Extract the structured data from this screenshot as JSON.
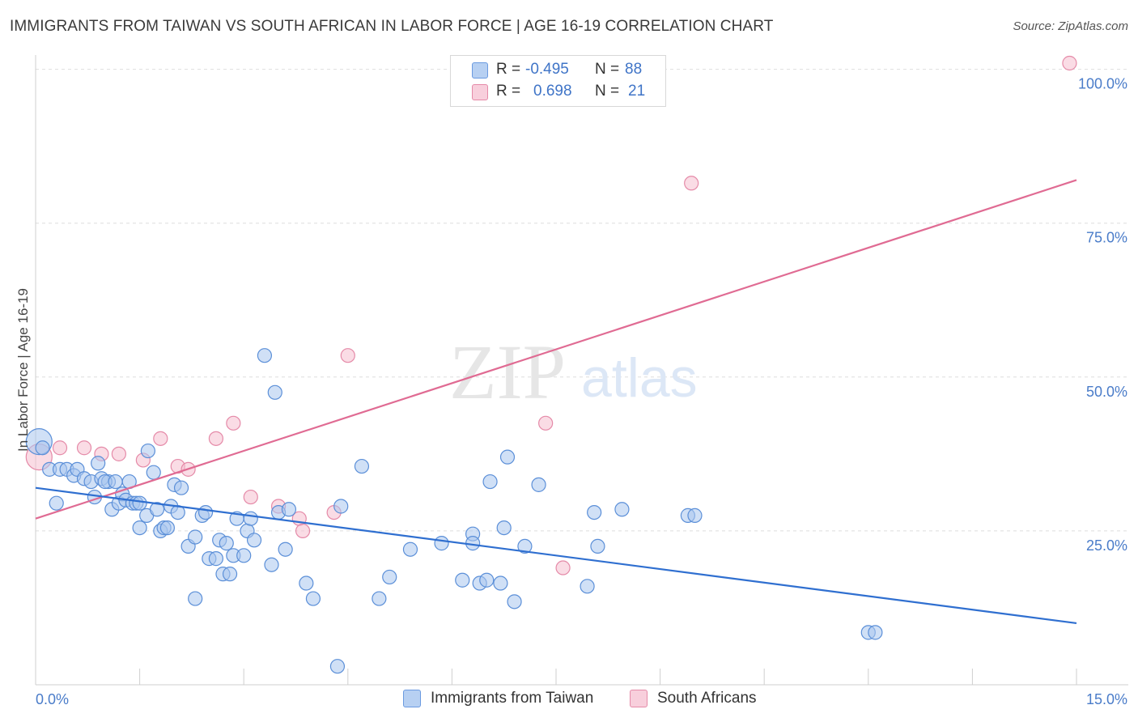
{
  "title": "IMMIGRANTS FROM TAIWAN VS SOUTH AFRICAN IN LABOR FORCE | AGE 16-19 CORRELATION CHART",
  "source": "Source: ZipAtlas.com",
  "watermark": {
    "zip": "ZIP",
    "atlas": "atlas"
  },
  "colors": {
    "blue_fill": "#a9c6ef",
    "blue_stroke": "#5b8fd8",
    "blue_line": "#2f6fd0",
    "pink_fill": "#f5bfd0",
    "pink_stroke": "#e58aa8",
    "pink_line": "#e06b93",
    "tick_text": "#4a7cc9"
  },
  "stats": {
    "r_label": "R =",
    "n_label": "N =",
    "rows": [
      {
        "r": "-0.495",
        "n": "88"
      },
      {
        "r": "0.698",
        "n": "21"
      }
    ]
  },
  "legend": {
    "items": [
      "Immigrants from Taiwan",
      "South Africans"
    ]
  },
  "chart_data": {
    "type": "scatter",
    "title": "IMMIGRANTS FROM TAIWAN VS SOUTH AFRICAN IN LABOR FORCE | AGE 16-19 CORRELATION CHART",
    "xlabel": "",
    "ylabel": "In Labor Force | Age 16-19",
    "xlim": [
      0,
      15
    ],
    "ylim": [
      0,
      101
    ],
    "x_tick_labels": [
      {
        "value": 0,
        "label": "0.0%"
      },
      {
        "value": 15,
        "label": "15.0%"
      }
    ],
    "y_tick_labels": [
      {
        "value": 25,
        "label": "25.0%"
      },
      {
        "value": 50,
        "label": "50.0%"
      },
      {
        "value": 75,
        "label": "75.0%"
      },
      {
        "value": 100,
        "label": "100.0%"
      }
    ],
    "y_gridlines": [
      25,
      50,
      75,
      100
    ],
    "x_minor_ticks": [
      1.5,
      3.0,
      4.5,
      6.0,
      7.5,
      9.0,
      10.5,
      12.0,
      13.5,
      15.0
    ],
    "legend_position": "bottom-center",
    "series": [
      {
        "name": "Immigrants from Taiwan",
        "color": "#a9c6ef",
        "trend": {
          "x": [
            0,
            15
          ],
          "y": [
            32.0,
            10.0
          ]
        },
        "points": [
          {
            "x": 0.05,
            "y": 39.5,
            "big": true
          },
          {
            "x": 0.1,
            "y": 38.5
          },
          {
            "x": 0.2,
            "y": 35.0
          },
          {
            "x": 0.3,
            "y": 29.5
          },
          {
            "x": 0.35,
            "y": 35.0
          },
          {
            "x": 0.45,
            "y": 35.0
          },
          {
            "x": 0.55,
            "y": 34.0
          },
          {
            "x": 0.6,
            "y": 35.0
          },
          {
            "x": 0.7,
            "y": 33.5
          },
          {
            "x": 0.8,
            "y": 33.0
          },
          {
            "x": 0.85,
            "y": 30.5
          },
          {
            "x": 0.9,
            "y": 36.0
          },
          {
            "x": 0.95,
            "y": 33.5
          },
          {
            "x": 1.05,
            "y": 33.0
          },
          {
            "x": 1.0,
            "y": 33.0
          },
          {
            "x": 1.1,
            "y": 28.5
          },
          {
            "x": 1.15,
            "y": 33.0
          },
          {
            "x": 1.2,
            "y": 29.5
          },
          {
            "x": 1.25,
            "y": 31.0
          },
          {
            "x": 1.3,
            "y": 30.0
          },
          {
            "x": 1.35,
            "y": 33.0
          },
          {
            "x": 1.4,
            "y": 29.5
          },
          {
            "x": 1.45,
            "y": 29.5
          },
          {
            "x": 1.5,
            "y": 29.5
          },
          {
            "x": 1.5,
            "y": 25.5
          },
          {
            "x": 1.6,
            "y": 27.5
          },
          {
            "x": 1.62,
            "y": 38.0
          },
          {
            "x": 1.7,
            "y": 34.5
          },
          {
            "x": 1.75,
            "y": 28.5
          },
          {
            "x": 1.8,
            "y": 25.0
          },
          {
            "x": 1.85,
            "y": 25.5
          },
          {
            "x": 1.9,
            "y": 25.5
          },
          {
            "x": 1.95,
            "y": 29.0
          },
          {
            "x": 2.0,
            "y": 32.5
          },
          {
            "x": 2.05,
            "y": 28.0
          },
          {
            "x": 2.1,
            "y": 32.0
          },
          {
            "x": 2.2,
            "y": 22.5
          },
          {
            "x": 2.3,
            "y": 24.0
          },
          {
            "x": 2.4,
            "y": 27.5
          },
          {
            "x": 2.45,
            "y": 28.0
          },
          {
            "x": 2.5,
            "y": 20.5
          },
          {
            "x": 2.6,
            "y": 20.5
          },
          {
            "x": 2.65,
            "y": 23.5
          },
          {
            "x": 2.7,
            "y": 18.0
          },
          {
            "x": 2.75,
            "y": 23.0
          },
          {
            "x": 2.8,
            "y": 18.0
          },
          {
            "x": 2.85,
            "y": 21.0
          },
          {
            "x": 2.9,
            "y": 27.0
          },
          {
            "x": 3.0,
            "y": 21.0
          },
          {
            "x": 3.05,
            "y": 25.0
          },
          {
            "x": 3.1,
            "y": 27.0
          },
          {
            "x": 3.15,
            "y": 23.5
          },
          {
            "x": 3.3,
            "y": 53.5
          },
          {
            "x": 3.4,
            "y": 19.5
          },
          {
            "x": 3.45,
            "y": 47.5
          },
          {
            "x": 3.5,
            "y": 28.0
          },
          {
            "x": 3.6,
            "y": 22.0
          },
          {
            "x": 3.65,
            "y": 28.5
          },
          {
            "x": 3.9,
            "y": 16.5
          },
          {
            "x": 4.0,
            "y": 14.0
          },
          {
            "x": 2.3,
            "y": 14.0
          },
          {
            "x": 4.35,
            "y": 3.0
          },
          {
            "x": 4.4,
            "y": 29.0
          },
          {
            "x": 4.7,
            "y": 35.5
          },
          {
            "x": 4.95,
            "y": 14.0
          },
          {
            "x": 5.1,
            "y": 17.5
          },
          {
            "x": 5.4,
            "y": 22.0
          },
          {
            "x": 5.85,
            "y": 23.0
          },
          {
            "x": 6.15,
            "y": 17.0
          },
          {
            "x": 6.3,
            "y": 24.5
          },
          {
            "x": 6.3,
            "y": 23.0
          },
          {
            "x": 6.4,
            "y": 16.5
          },
          {
            "x": 6.5,
            "y": 17.0
          },
          {
            "x": 6.55,
            "y": 33.0
          },
          {
            "x": 6.7,
            "y": 16.5
          },
          {
            "x": 6.75,
            "y": 25.5
          },
          {
            "x": 6.8,
            "y": 37.0
          },
          {
            "x": 6.9,
            "y": 13.5
          },
          {
            "x": 7.05,
            "y": 22.5
          },
          {
            "x": 7.25,
            "y": 32.5
          },
          {
            "x": 7.95,
            "y": 16.0
          },
          {
            "x": 8.05,
            "y": 28.0
          },
          {
            "x": 8.1,
            "y": 22.5
          },
          {
            "x": 8.45,
            "y": 28.5
          },
          {
            "x": 9.4,
            "y": 27.5
          },
          {
            "x": 9.5,
            "y": 27.5
          },
          {
            "x": 12.0,
            "y": 8.5
          },
          {
            "x": 12.1,
            "y": 8.5
          }
        ]
      },
      {
        "name": "South Africans",
        "color": "#f5bfd0",
        "trend": {
          "x": [
            0,
            15
          ],
          "y": [
            27.0,
            82.0
          ]
        },
        "points": [
          {
            "x": 0.05,
            "y": 37.0,
            "big": true
          },
          {
            "x": 0.35,
            "y": 38.5
          },
          {
            "x": 0.7,
            "y": 38.5
          },
          {
            "x": 0.95,
            "y": 37.5
          },
          {
            "x": 1.2,
            "y": 37.5
          },
          {
            "x": 1.55,
            "y": 36.5
          },
          {
            "x": 1.8,
            "y": 40.0
          },
          {
            "x": 2.05,
            "y": 35.5
          },
          {
            "x": 2.2,
            "y": 35.0
          },
          {
            "x": 2.6,
            "y": 40.0
          },
          {
            "x": 2.85,
            "y": 42.5
          },
          {
            "x": 3.1,
            "y": 30.5
          },
          {
            "x": 3.5,
            "y": 29.0
          },
          {
            "x": 3.8,
            "y": 27.0
          },
          {
            "x": 3.85,
            "y": 25.0
          },
          {
            "x": 4.3,
            "y": 28.0
          },
          {
            "x": 4.5,
            "y": 53.5
          },
          {
            "x": 7.35,
            "y": 42.5
          },
          {
            "x": 7.6,
            "y": 19.0
          },
          {
            "x": 9.45,
            "y": 81.5
          },
          {
            "x": 14.9,
            "y": 101.0
          }
        ]
      }
    ]
  }
}
